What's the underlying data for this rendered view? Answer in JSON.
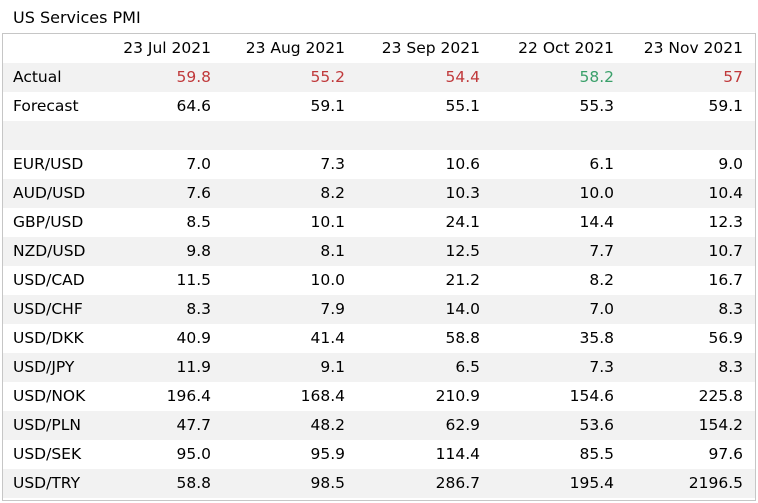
{
  "title": "US Services PMI",
  "columns": [
    "23 Jul 2021",
    "23 Aug 2021",
    "23 Sep 2021",
    "22 Oct 2021",
    "23 Nov 2021"
  ],
  "actual": {
    "label": "Actual",
    "values": [
      "59.8",
      "55.2",
      "54.4",
      "58.2",
      "57"
    ],
    "colors": [
      "#c0393b",
      "#c0393b",
      "#c0393b",
      "#3aa06a",
      "#c0393b"
    ]
  },
  "forecast": {
    "label": "Forecast",
    "values": [
      "64.6",
      "59.1",
      "55.1",
      "55.3",
      "59.1"
    ]
  },
  "pairs": [
    {
      "label": "EUR/USD",
      "values": [
        "7.0",
        "7.3",
        "10.6",
        "6.1",
        "9.0"
      ]
    },
    {
      "label": "AUD/USD",
      "values": [
        "7.6",
        "8.2",
        "10.3",
        "10.0",
        "10.4"
      ]
    },
    {
      "label": "GBP/USD",
      "values": [
        "8.5",
        "10.1",
        "24.1",
        "14.4",
        "12.3"
      ]
    },
    {
      "label": "NZD/USD",
      "values": [
        "9.8",
        "8.1",
        "12.5",
        "7.7",
        "10.7"
      ]
    },
    {
      "label": "USD/CAD",
      "values": [
        "11.5",
        "10.0",
        "21.2",
        "8.2",
        "16.7"
      ]
    },
    {
      "label": "USD/CHF",
      "values": [
        "8.3",
        "7.9",
        "14.0",
        "7.0",
        "8.3"
      ]
    },
    {
      "label": "USD/DKK",
      "values": [
        "40.9",
        "41.4",
        "58.8",
        "35.8",
        "56.9"
      ]
    },
    {
      "label": "USD/JPY",
      "values": [
        "11.9",
        "9.1",
        "6.5",
        "7.3",
        "8.3"
      ]
    },
    {
      "label": "USD/NOK",
      "values": [
        "196.4",
        "168.4",
        "210.9",
        "154.6",
        "225.8"
      ]
    },
    {
      "label": "USD/PLN",
      "values": [
        "47.7",
        "48.2",
        "62.9",
        "53.6",
        "154.2"
      ]
    },
    {
      "label": "USD/SEK",
      "values": [
        "95.0",
        "95.9",
        "114.4",
        "85.5",
        "97.6"
      ]
    },
    {
      "label": "USD/TRY",
      "values": [
        "58.8",
        "98.5",
        "286.7",
        "195.4",
        "2196.5"
      ]
    }
  ]
}
